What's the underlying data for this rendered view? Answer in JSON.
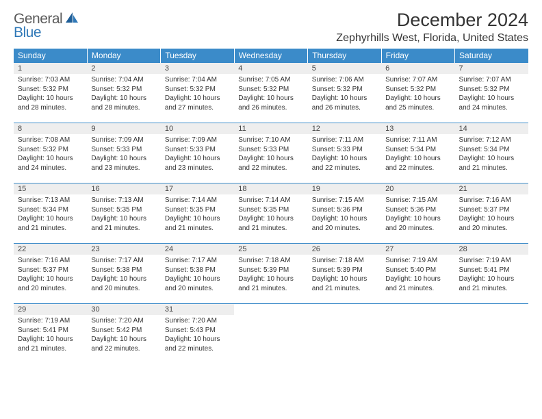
{
  "logo": {
    "part1": "General",
    "part2": "Blue"
  },
  "title": "December 2024",
  "location": "Zephyrhills West, Florida, United States",
  "colors": {
    "header_bg": "#3b8bc9",
    "header_text": "#ffffff",
    "daynum_bg": "#eeeeee",
    "rule": "#3b8bc9",
    "logo_gray": "#5a5a5a",
    "logo_blue": "#2f78b7"
  },
  "weekdays": [
    "Sunday",
    "Monday",
    "Tuesday",
    "Wednesday",
    "Thursday",
    "Friday",
    "Saturday"
  ],
  "days": [
    {
      "n": "1",
      "sr": "7:03 AM",
      "ss": "5:32 PM",
      "dh": "10",
      "dm": "28"
    },
    {
      "n": "2",
      "sr": "7:04 AM",
      "ss": "5:32 PM",
      "dh": "10",
      "dm": "28"
    },
    {
      "n": "3",
      "sr": "7:04 AM",
      "ss": "5:32 PM",
      "dh": "10",
      "dm": "27"
    },
    {
      "n": "4",
      "sr": "7:05 AM",
      "ss": "5:32 PM",
      "dh": "10",
      "dm": "26"
    },
    {
      "n": "5",
      "sr": "7:06 AM",
      "ss": "5:32 PM",
      "dh": "10",
      "dm": "26"
    },
    {
      "n": "6",
      "sr": "7:07 AM",
      "ss": "5:32 PM",
      "dh": "10",
      "dm": "25"
    },
    {
      "n": "7",
      "sr": "7:07 AM",
      "ss": "5:32 PM",
      "dh": "10",
      "dm": "24"
    },
    {
      "n": "8",
      "sr": "7:08 AM",
      "ss": "5:32 PM",
      "dh": "10",
      "dm": "24"
    },
    {
      "n": "9",
      "sr": "7:09 AM",
      "ss": "5:33 PM",
      "dh": "10",
      "dm": "23"
    },
    {
      "n": "10",
      "sr": "7:09 AM",
      "ss": "5:33 PM",
      "dh": "10",
      "dm": "23"
    },
    {
      "n": "11",
      "sr": "7:10 AM",
      "ss": "5:33 PM",
      "dh": "10",
      "dm": "22"
    },
    {
      "n": "12",
      "sr": "7:11 AM",
      "ss": "5:33 PM",
      "dh": "10",
      "dm": "22"
    },
    {
      "n": "13",
      "sr": "7:11 AM",
      "ss": "5:34 PM",
      "dh": "10",
      "dm": "22"
    },
    {
      "n": "14",
      "sr": "7:12 AM",
      "ss": "5:34 PM",
      "dh": "10",
      "dm": "21"
    },
    {
      "n": "15",
      "sr": "7:13 AM",
      "ss": "5:34 PM",
      "dh": "10",
      "dm": "21"
    },
    {
      "n": "16",
      "sr": "7:13 AM",
      "ss": "5:35 PM",
      "dh": "10",
      "dm": "21"
    },
    {
      "n": "17",
      "sr": "7:14 AM",
      "ss": "5:35 PM",
      "dh": "10",
      "dm": "21"
    },
    {
      "n": "18",
      "sr": "7:14 AM",
      "ss": "5:35 PM",
      "dh": "10",
      "dm": "21"
    },
    {
      "n": "19",
      "sr": "7:15 AM",
      "ss": "5:36 PM",
      "dh": "10",
      "dm": "20"
    },
    {
      "n": "20",
      "sr": "7:15 AM",
      "ss": "5:36 PM",
      "dh": "10",
      "dm": "20"
    },
    {
      "n": "21",
      "sr": "7:16 AM",
      "ss": "5:37 PM",
      "dh": "10",
      "dm": "20"
    },
    {
      "n": "22",
      "sr": "7:16 AM",
      "ss": "5:37 PM",
      "dh": "10",
      "dm": "20"
    },
    {
      "n": "23",
      "sr": "7:17 AM",
      "ss": "5:38 PM",
      "dh": "10",
      "dm": "20"
    },
    {
      "n": "24",
      "sr": "7:17 AM",
      "ss": "5:38 PM",
      "dh": "10",
      "dm": "20"
    },
    {
      "n": "25",
      "sr": "7:18 AM",
      "ss": "5:39 PM",
      "dh": "10",
      "dm": "21"
    },
    {
      "n": "26",
      "sr": "7:18 AM",
      "ss": "5:39 PM",
      "dh": "10",
      "dm": "21"
    },
    {
      "n": "27",
      "sr": "7:19 AM",
      "ss": "5:40 PM",
      "dh": "10",
      "dm": "21"
    },
    {
      "n": "28",
      "sr": "7:19 AM",
      "ss": "5:41 PM",
      "dh": "10",
      "dm": "21"
    },
    {
      "n": "29",
      "sr": "7:19 AM",
      "ss": "5:41 PM",
      "dh": "10",
      "dm": "21"
    },
    {
      "n": "30",
      "sr": "7:20 AM",
      "ss": "5:42 PM",
      "dh": "10",
      "dm": "22"
    },
    {
      "n": "31",
      "sr": "7:20 AM",
      "ss": "5:43 PM",
      "dh": "10",
      "dm": "22"
    }
  ],
  "labels": {
    "sunrise": "Sunrise:",
    "sunset": "Sunset:",
    "daylight": "Daylight:",
    "hours": "hours",
    "and": "and",
    "minutes": "minutes."
  }
}
